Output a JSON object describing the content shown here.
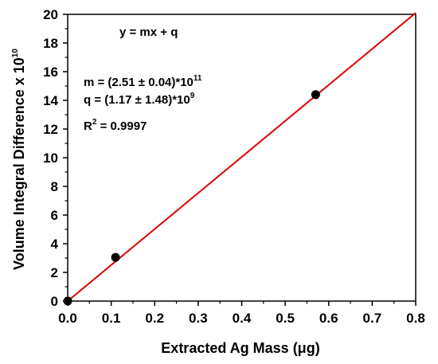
{
  "chart_data": {
    "type": "scatter",
    "xlabel": "Extracted Ag Mass (μg)",
    "ylabel": "Volume Integral Difference x 10",
    "ylabel_exp": "10",
    "xlim": [
      0,
      0.8
    ],
    "ylim": [
      0,
      20
    ],
    "x_ticks": [
      0.0,
      0.1,
      0.2,
      0.3,
      0.4,
      0.5,
      0.6,
      0.7,
      0.8
    ],
    "x_tick_labels": [
      "0.0",
      "0.1",
      "0.2",
      "0.3",
      "0.4",
      "0.5",
      "0.6",
      "0.7",
      "0.8"
    ],
    "y_ticks": [
      0,
      2,
      4,
      6,
      8,
      10,
      12,
      14,
      16,
      18,
      20
    ],
    "y_tick_labels": [
      "0",
      "2",
      "4",
      "6",
      "8",
      "10",
      "12",
      "14",
      "16",
      "18",
      "20"
    ],
    "grid": false,
    "series": [
      {
        "x": [
          0.0,
          0.11,
          0.57
        ],
        "y": [
          0.0,
          3.05,
          14.4
        ],
        "color": "#000000"
      }
    ],
    "fit_line": {
      "x": [
        0.0,
        0.8
      ],
      "y": [
        0.0,
        20.1
      ],
      "color": "#e00000"
    },
    "annotations": {
      "equation": "y = mx + q",
      "m_prefix": "m = (2.51 ± 0.04)*10",
      "m_exp": "11",
      "q_prefix": "q  = (1.17 ± 1.48)*10",
      "q_exp": "9",
      "r2_prefix": "R",
      "r2_sup": "2",
      "r2_suffix": " = 0.9997"
    }
  }
}
